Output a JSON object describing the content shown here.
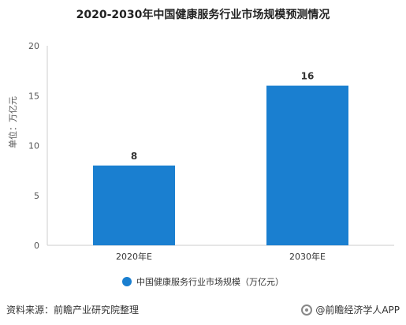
{
  "colors": {
    "bar": "#1a7fd0",
    "axis": "#cccccc",
    "tick_text": "#555555"
  },
  "legend_icon": "circle-dot",
  "footer": {
    "source": "资料来源：前瞻产业研究院整理",
    "brand": "@前瞻经济学人APP",
    "brand_icon": "logo-circle-icon"
  },
  "chart_data": {
    "type": "bar",
    "title": "2020-2030年中国健康服务行业市场规模预测情况",
    "ylabel": "单位：万亿元",
    "xlabel": "",
    "categories": [
      "2020年E",
      "2030年E"
    ],
    "series": [
      {
        "name": "中国健康服务行业市场规模（万亿元）",
        "values": [
          8,
          16
        ]
      }
    ],
    "ylim": [
      0,
      20
    ],
    "yticks": [
      0,
      5,
      10,
      15,
      20
    ],
    "data_labels": [
      "8",
      "16"
    ],
    "legend_position": "bottom",
    "grid": false
  }
}
